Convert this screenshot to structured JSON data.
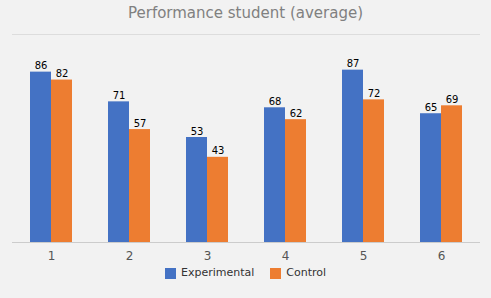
{
  "chart_data": {
    "type": "bar",
    "title": "Performance student (average)",
    "categories": [
      "1",
      "2",
      "3",
      "4",
      "5",
      "6"
    ],
    "series": [
      {
        "name": "Experimental",
        "color": "#4472C4",
        "values": [
          86,
          71,
          53,
          68,
          87,
          65
        ]
      },
      {
        "name": "Control",
        "color": "#ED7D31",
        "values": [
          82,
          57,
          43,
          62,
          72,
          69
        ]
      }
    ],
    "ylim": [
      0,
      105
    ],
    "grid": false,
    "legend": "bottom",
    "data_labels": true,
    "tick_labels": "x"
  }
}
